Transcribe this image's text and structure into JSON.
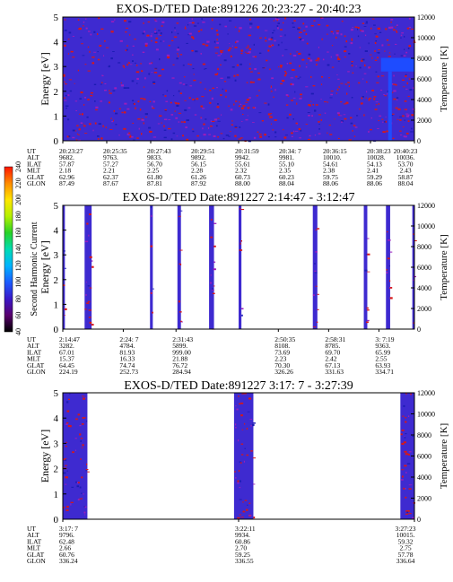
{
  "colorbar": {
    "label": "Second Harmonic Current",
    "ticks": [
      "40",
      "60",
      "80",
      "100",
      "120",
      "140",
      "160",
      "180",
      "200",
      "220",
      "240"
    ]
  },
  "chart_data": [
    {
      "type": "heatmap",
      "title": "EXOS-D/TED   Date:891226  20:23:27 - 20:40:23",
      "ylabel": "Energy [eV]",
      "y2label": "Temperature [K]",
      "ylim": [
        0,
        5
      ],
      "y2lim": [
        0,
        12000
      ],
      "yticks": [
        "0",
        "1",
        "2",
        "3",
        "4",
        "5"
      ],
      "y2ticks": [
        "0",
        "2000",
        "4000",
        "6000",
        "8000",
        "10000",
        "12000"
      ],
      "background": "dense",
      "bands": [],
      "enhancement": {
        "x_from": 0.905,
        "energy_from": 2.8,
        "energy_to": 3.35
      },
      "orbit_rows": [
        "UT",
        "ALT",
        "ILAT",
        "MLT",
        "GLAT",
        "GLON"
      ],
      "orbit_table": [
        {
          "x": 0.0,
          "values": [
            "20:23:27",
            "9682.",
            "57.87",
            "2.18",
            "62.96",
            "87.49"
          ]
        },
        {
          "x": 0.125,
          "values": [
            "20:25:35",
            "9763.",
            "57.27",
            "2.21",
            "62.37",
            "87.67"
          ]
        },
        {
          "x": 0.25,
          "values": [
            "20:27:43",
            "9833.",
            "56.70",
            "2.25",
            "61.80",
            "87.81"
          ]
        },
        {
          "x": 0.375,
          "values": [
            "20:29:51",
            "9892.",
            "56.15",
            "2.28",
            "61.26",
            "87.92"
          ]
        },
        {
          "x": 0.5,
          "values": [
            "20:31:59",
            "9942.",
            "55.61",
            "2.32",
            "60.73",
            "88.00"
          ]
        },
        {
          "x": 0.625,
          "values": [
            "20:34: 7",
            "9981.",
            "55.10",
            "2.35",
            "60.23",
            "88.04"
          ]
        },
        {
          "x": 0.75,
          "values": [
            "20:36:15",
            "10010.",
            "54.61",
            "2.38",
            "59.75",
            "88.06"
          ]
        },
        {
          "x": 0.875,
          "values": [
            "20:38:23",
            "10028.",
            "54.13",
            "2.41",
            "59.29",
            "88.06"
          ]
        },
        {
          "x": 1.0,
          "values": [
            "20:40:23",
            "10036.",
            "53.70",
            "2.43",
            "58.87",
            "88.04"
          ]
        }
      ]
    },
    {
      "type": "heatmap",
      "title": "EXOS-D/TED   Date:891227  2:14:47 - 3:12:47",
      "ylabel": "Energy [eV]",
      "y2label": "Temperature [K]",
      "ylim": [
        0,
        5
      ],
      "y2lim": [
        0,
        12000
      ],
      "yticks": [
        "0",
        "1",
        "2",
        "3",
        "4",
        "5"
      ],
      "y2ticks": [
        "0",
        "2000",
        "4000",
        "6000",
        "8000",
        "10000",
        "12000"
      ],
      "background": "sparse",
      "bands": [
        [
          0.0,
          0.006
        ],
        [
          0.062,
          0.082
        ],
        [
          0.248,
          0.256
        ],
        [
          0.326,
          0.336
        ],
        [
          0.416,
          0.43
        ],
        [
          0.5,
          0.508
        ],
        [
          0.711,
          0.724
        ],
        [
          0.856,
          0.866
        ],
        [
          0.919,
          0.931
        ],
        [
          0.994,
          1.0
        ]
      ],
      "orbit_rows": [
        "UT",
        "ALT",
        "ILAT",
        "MLT",
        "GLAT",
        "GLON"
      ],
      "orbit_table": [
        {
          "x": 0.0,
          "values": [
            "2:14:47",
            "3282.",
            "67.01",
            "15.37",
            "64.45",
            "224.19"
          ]
        },
        {
          "x": 0.172,
          "values": [
            "2:24: 7",
            "4784.",
            "81.93",
            "16.33",
            "74.74",
            "252.73"
          ]
        },
        {
          "x": 0.322,
          "values": [
            "2:31:43",
            "5899.",
            "999.00",
            "21.88",
            "76.72",
            "284.94"
          ]
        },
        {
          "x": 0.613,
          "values": [
            "2:50:35",
            "8108.",
            "73.69",
            "2.23",
            "70.30",
            "326.26"
          ]
        },
        {
          "x": 0.756,
          "values": [
            "2:58:31",
            "8785.",
            "69.70",
            "2.42",
            "67.13",
            "331.63"
          ]
        },
        {
          "x": 0.899,
          "values": [
            "3: 7:19",
            "9363.",
            "65.99",
            "2.55",
            "63.93",
            "334.71"
          ]
        }
      ]
    },
    {
      "type": "heatmap",
      "title": "EXOS-D/TED   Date:891227  3:17: 7 - 3:27:39",
      "ylabel": "Energy [eV]",
      "y2label": "Temperature [K]",
      "ylim": [
        0,
        5
      ],
      "y2lim": [
        0,
        12000
      ],
      "yticks": [
        "0",
        "1",
        "2",
        "3",
        "4",
        "5"
      ],
      "y2ticks": [
        "0",
        "2000",
        "4000",
        "6000",
        "8000",
        "10000",
        "12000"
      ],
      "background": "sparse",
      "bands": [
        [
          0.0,
          0.07
        ],
        [
          0.487,
          0.542
        ],
        [
          0.96,
          1.0
        ]
      ],
      "orbit_rows": [
        "UT",
        "ALT",
        "ILAT",
        "MLT",
        "GLAT",
        "GLON"
      ],
      "orbit_table": [
        {
          "x": 0.0,
          "values": [
            "3:17: 7",
            "9796.",
            "62.48",
            "2.66",
            "60.76",
            "336.24"
          ]
        },
        {
          "x": 0.5,
          "values": [
            "3:22:11",
            "9934.",
            "60.86",
            "2.70",
            "59.25",
            "336.55"
          ]
        },
        {
          "x": 1.0,
          "values": [
            "3:27:23",
            "10015.",
            "59.32",
            "2.75",
            "57.78",
            "336.64"
          ]
        }
      ]
    }
  ]
}
